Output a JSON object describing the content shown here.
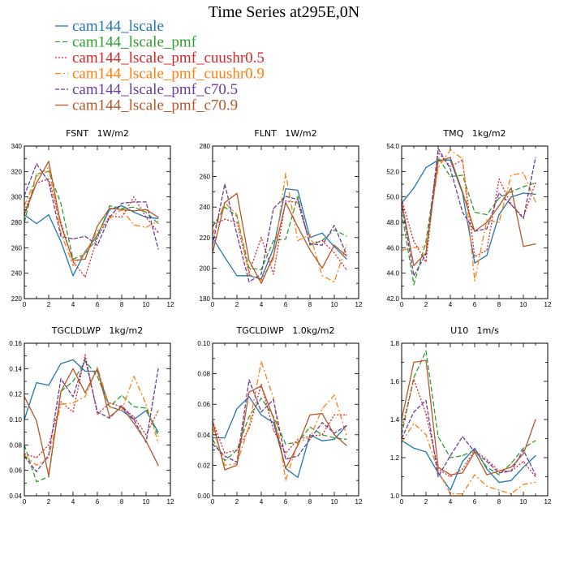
{
  "figure": {
    "title": "Time Series at295E,0N",
    "legend": [
      {
        "label": "cam144_lscale",
        "color": "#1f77b4",
        "dash": "solid"
      },
      {
        "label": "cam144_lscale_pmf",
        "color": "#2ca02c",
        "dash": "dashed"
      },
      {
        "label": "cam144_lscale_pmf_cuushr0.5",
        "color": "#d62728",
        "dash": "dotted"
      },
      {
        "label": "cam144_lscale_pmf_cuushr0.9",
        "color": "#ff7f0e",
        "dash": "dashdot"
      },
      {
        "label": "cam144_lscale_pmf_c70.5",
        "color": "#6a3d9a",
        "dash": "dashed2"
      },
      {
        "label": "cam144_lscale_pmf_c70.9",
        "color": "#b5562a",
        "dash": "solid"
      }
    ]
  },
  "chart_data": [
    {
      "type": "line",
      "title": "FSNT   1W/m2",
      "x": [
        0,
        1,
        2,
        3,
        4,
        5,
        6,
        7,
        8,
        9,
        10,
        11
      ],
      "xlim": [
        0,
        12
      ],
      "xticks": [
        "0",
        "2",
        "4",
        "6",
        "8",
        "10",
        "12"
      ],
      "ylim": [
        220,
        340
      ],
      "yticks": [
        "220",
        "240",
        "260",
        "280",
        "300",
        "320",
        "340"
      ],
      "series": [
        {
          "name": "cam144_lscale",
          "values": [
            286,
            279,
            286,
            265,
            238,
            257,
            270,
            290,
            293,
            288,
            284,
            283
          ]
        },
        {
          "name": "cam144_lscale_pmf",
          "values": [
            280,
            318,
            320,
            295,
            251,
            255,
            268,
            293,
            291,
            292,
            288,
            279
          ]
        },
        {
          "name": "cam144_lscale_pmf_cuushr0.5",
          "values": [
            289,
            311,
            314,
            280,
            249,
            237,
            268,
            285,
            284,
            300,
            284,
            272
          ]
        },
        {
          "name": "cam144_lscale_pmf_cuushr0.9",
          "values": [
            293,
            316,
            323,
            272,
            246,
            256,
            273,
            283,
            290,
            278,
            276,
            281
          ]
        },
        {
          "name": "cam144_lscale_pmf_c70.5",
          "values": [
            301,
            326,
            312,
            269,
            267,
            269,
            262,
            284,
            295,
            296,
            296,
            259
          ]
        },
        {
          "name": "cam144_lscale_pmf_c70.9",
          "values": [
            286,
            311,
            328,
            278,
            250,
            251,
            277,
            291,
            290,
            289,
            290,
            284
          ]
        }
      ]
    },
    {
      "type": "line",
      "title": "FLNT   1W/m2",
      "x": [
        0,
        1,
        2,
        3,
        4,
        5,
        6,
        7,
        8,
        9,
        10,
        11
      ],
      "xlim": [
        0,
        12
      ],
      "xticks": [
        "0",
        "2",
        "4",
        "6",
        "8",
        "10",
        "12"
      ],
      "ylim": [
        180,
        280
      ],
      "yticks": [
        "180",
        "200",
        "220",
        "240",
        "260",
        "280"
      ],
      "series": [
        {
          "name": "cam144_lscale",
          "values": [
            220,
            207,
            195,
            195,
            193,
            213,
            252,
            251,
            220,
            223,
            214,
            206
          ]
        },
        {
          "name": "cam144_lscale_pmf",
          "values": [
            227,
            240,
            234,
            200,
            199,
            218,
            219,
            247,
            215,
            218,
            225,
            221
          ]
        },
        {
          "name": "cam144_lscale_pmf_cuushr0.5",
          "values": [
            228,
            232,
            230,
            197,
            220,
            196,
            244,
            243,
            216,
            218,
            210,
            199
          ]
        },
        {
          "name": "cam144_lscale_pmf_cuushr0.9",
          "values": [
            222,
            243,
            235,
            196,
            192,
            206,
            262,
            218,
            222,
            195,
            191,
            215
          ]
        },
        {
          "name": "cam144_lscale_pmf_c70.5",
          "values": [
            215,
            255,
            222,
            191,
            196,
            239,
            247,
            245,
            216,
            215,
            228,
            209
          ]
        },
        {
          "name": "cam144_lscale_pmf_c70.9",
          "values": [
            210,
            243,
            249,
            205,
            190,
            208,
            243,
            227,
            212,
            200,
            215,
            208
          ]
        }
      ]
    },
    {
      "type": "line",
      "title": "TMQ   1kg/m2",
      "x": [
        0,
        1,
        2,
        3,
        4,
        5,
        6,
        7,
        8,
        9,
        10,
        11
      ],
      "xlim": [
        0,
        12
      ],
      "xticks": [
        "0",
        "2",
        "4",
        "6",
        "8",
        "10",
        "12"
      ],
      "ylim": [
        42.0,
        54.0
      ],
      "yticks": [
        "42.0",
        "44.0",
        "46.0",
        "48.0",
        "50.0",
        "52.0",
        "54.0"
      ],
      "series": [
        {
          "name": "cam144_lscale",
          "values": [
            49.5,
            50.7,
            52.3,
            52.9,
            52.9,
            50.3,
            44.8,
            45.4,
            48.6,
            50.0,
            50.3,
            50.2
          ]
        },
        {
          "name": "cam144_lscale_pmf",
          "values": [
            48.8,
            43.1,
            46.5,
            53.1,
            51.6,
            51.7,
            48.8,
            48.6,
            49.9,
            50.4,
            50.8,
            51.1
          ]
        },
        {
          "name": "cam144_lscale_pmf_cuushr0.5",
          "values": [
            49.8,
            46.5,
            44.9,
            53.5,
            52.4,
            52.9,
            45.3,
            45.8,
            51.4,
            49.4,
            48.4,
            51.1
          ]
        },
        {
          "name": "cam144_lscale_pmf_cuushr0.9",
          "values": [
            45.8,
            46.0,
            46.1,
            52.3,
            53.7,
            53.0,
            43.4,
            48.2,
            48.0,
            51.7,
            51.9,
            49.6
          ]
        },
        {
          "name": "cam144_lscale_pmf_c70.5",
          "values": [
            49.5,
            43.8,
            45.5,
            53.8,
            52.2,
            48.8,
            47.3,
            47.5,
            50.3,
            49.4,
            48.3,
            53.1
          ]
        },
        {
          "name": "cam144_lscale_pmf_c70.9",
          "values": [
            49.6,
            44.6,
            45.6,
            52.8,
            53.1,
            50.4,
            47.3,
            48.0,
            49.3,
            50.7,
            46.1,
            46.3
          ]
        }
      ]
    },
    {
      "type": "line",
      "title": "TGCLDLWP   1kg/m2",
      "x": [
        0,
        1,
        2,
        3,
        4,
        5,
        6,
        7,
        8,
        9,
        10,
        11
      ],
      "xlim": [
        0,
        12
      ],
      "xticks": [
        "0",
        "2",
        "4",
        "6",
        "8",
        "10",
        "12"
      ],
      "ylim": [
        0.04,
        0.16
      ],
      "yticks": [
        "0.04",
        "0.06",
        "0.08",
        "0.10",
        "0.12",
        "0.14",
        "0.16"
      ],
      "series": [
        {
          "name": "cam144_lscale",
          "values": [
            0.1,
            0.129,
            0.127,
            0.144,
            0.147,
            0.138,
            0.138,
            0.11,
            0.107,
            0.1,
            0.107,
            0.09
          ]
        },
        {
          "name": "cam144_lscale_pmf",
          "values": [
            0.08,
            0.051,
            0.055,
            0.122,
            0.13,
            0.146,
            0.134,
            0.11,
            0.119,
            0.11,
            0.109,
            0.087
          ]
        },
        {
          "name": "cam144_lscale_pmf_cuushr0.5",
          "values": [
            0.073,
            0.07,
            0.08,
            0.114,
            0.106,
            0.151,
            0.104,
            0.113,
            0.11,
            0.102,
            0.088,
            0.107
          ]
        },
        {
          "name": "cam144_lscale_pmf_cuushr0.9",
          "values": [
            0.072,
            0.064,
            0.07,
            0.112,
            0.113,
            0.118,
            0.141,
            0.11,
            0.107,
            0.134,
            0.112,
            0.082
          ]
        },
        {
          "name": "cam144_lscale_pmf_c70.5",
          "values": [
            0.071,
            0.059,
            0.072,
            0.132,
            0.118,
            0.148,
            0.106,
            0.101,
            0.111,
            0.1,
            0.082,
            0.14
          ]
        },
        {
          "name": "cam144_lscale_pmf_c70.9",
          "values": [
            0.118,
            0.099,
            0.056,
            0.122,
            0.14,
            0.121,
            0.14,
            0.102,
            0.11,
            0.097,
            0.083,
            0.064
          ]
        }
      ]
    },
    {
      "type": "line",
      "title": "TGCLDIWP   1.0kg/m2",
      "x": [
        0,
        1,
        2,
        3,
        4,
        5,
        6,
        7,
        8,
        9,
        10,
        11
      ],
      "xlim": [
        0,
        12
      ],
      "xticks": [
        "0",
        "2",
        "4",
        "6",
        "8",
        "10",
        "12"
      ],
      "ylim": [
        0.0,
        0.1
      ],
      "yticks": [
        "0.00",
        "0.02",
        "0.04",
        "0.06",
        "0.08",
        "0.10"
      ],
      "series": [
        {
          "name": "cam144_lscale",
          "values": [
            0.038,
            0.038,
            0.057,
            0.065,
            0.053,
            0.048,
            0.018,
            0.012,
            0.04,
            0.036,
            0.037,
            0.046
          ]
        },
        {
          "name": "cam144_lscale_pmf",
          "values": [
            0.037,
            0.023,
            0.03,
            0.052,
            0.064,
            0.052,
            0.034,
            0.035,
            0.045,
            0.04,
            0.038,
            0.037
          ]
        },
        {
          "name": "cam144_lscale_pmf_cuushr0.5",
          "values": [
            0.049,
            0.028,
            0.03,
            0.044,
            0.073,
            0.043,
            0.028,
            0.037,
            0.039,
            0.04,
            0.053,
            0.053
          ]
        },
        {
          "name": "cam144_lscale_pmf_cuushr0.9",
          "values": [
            0.045,
            0.02,
            0.021,
            0.046,
            0.088,
            0.064,
            0.01,
            0.035,
            0.038,
            0.057,
            0.066,
            0.04
          ]
        },
        {
          "name": "cam144_lscale_pmf_c70.5",
          "values": [
            0.034,
            0.026,
            0.022,
            0.076,
            0.055,
            0.063,
            0.024,
            0.026,
            0.037,
            0.048,
            0.041,
            0.046
          ]
        },
        {
          "name": "cam144_lscale_pmf_c70.9",
          "values": [
            0.049,
            0.017,
            0.02,
            0.068,
            0.072,
            0.051,
            0.018,
            0.033,
            0.053,
            0.054,
            0.04,
            0.033
          ]
        }
      ]
    },
    {
      "type": "line",
      "title": "U10   1m/s",
      "x": [
        0,
        1,
        2,
        3,
        4,
        5,
        6,
        7,
        8,
        9,
        10,
        11
      ],
      "xlim": [
        0,
        12
      ],
      "xticks": [
        "0",
        "2",
        "4",
        "6",
        "8",
        "10",
        "12"
      ],
      "ylim": [
        1.0,
        1.8
      ],
      "yticks": [
        "1.0",
        "1.2",
        "1.4",
        "1.6",
        "1.8"
      ],
      "series": [
        {
          "name": "cam144_lscale",
          "values": [
            1.29,
            1.25,
            1.23,
            1.12,
            1.03,
            1.18,
            1.25,
            1.14,
            1.07,
            1.08,
            1.15,
            1.21
          ]
        },
        {
          "name": "cam144_lscale_pmf",
          "values": [
            1.32,
            1.62,
            1.76,
            1.31,
            1.2,
            1.21,
            1.24,
            1.15,
            1.11,
            1.17,
            1.25,
            1.29
          ]
        },
        {
          "name": "cam144_lscale_pmf_cuushr0.5",
          "values": [
            1.35,
            1.61,
            1.43,
            1.14,
            1.1,
            1.14,
            1.24,
            1.19,
            1.13,
            1.13,
            1.18,
            1.1
          ]
        },
        {
          "name": "cam144_lscale_pmf_cuushr0.9",
          "values": [
            1.28,
            1.38,
            1.32,
            1.13,
            1.01,
            1.01,
            1.11,
            1.05,
            1.03,
            1.01,
            1.06,
            1.07
          ]
        },
        {
          "name": "cam144_lscale_pmf_c70.5",
          "values": [
            1.3,
            1.44,
            1.5,
            1.1,
            1.21,
            1.31,
            1.23,
            1.18,
            1.12,
            1.13,
            1.24,
            1.11
          ]
        },
        {
          "name": "cam144_lscale_pmf_c70.9",
          "values": [
            1.4,
            1.7,
            1.71,
            1.15,
            1.11,
            1.12,
            1.23,
            1.11,
            1.13,
            1.15,
            1.22,
            1.4
          ]
        }
      ]
    }
  ]
}
